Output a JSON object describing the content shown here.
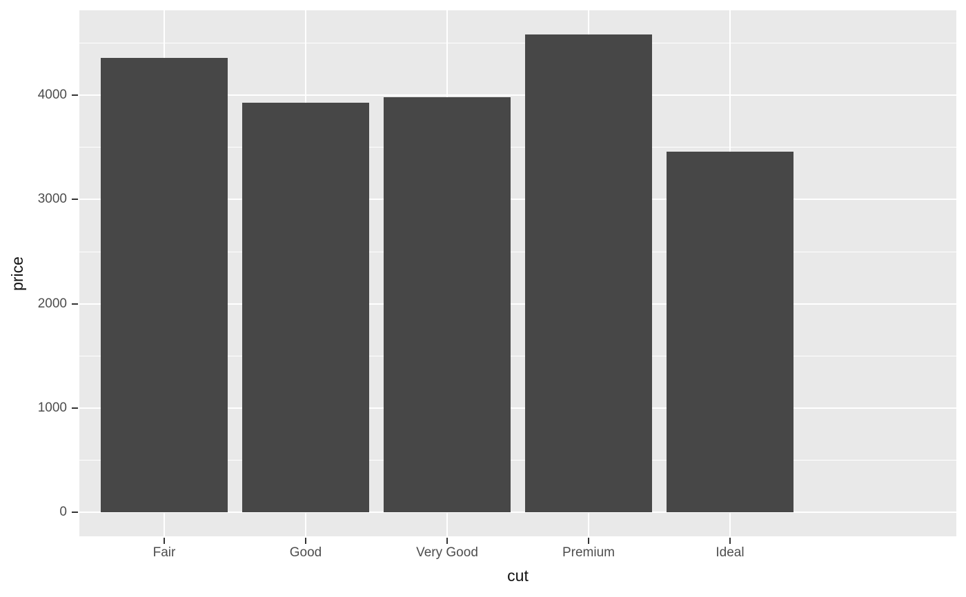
{
  "chart_data": {
    "type": "bar",
    "title": "",
    "xlabel": "cut",
    "ylabel": "price",
    "categories": [
      "Fair",
      "Good",
      "Very Good",
      "Premium",
      "Ideal"
    ],
    "values": [
      4359,
      3929,
      3982,
      4584,
      3458
    ],
    "ylim": [
      -229,
      4814
    ],
    "yticks": [
      0,
      1000,
      2000,
      3000,
      4000
    ],
    "ytick_labels": [
      "0",
      "1000",
      "2000",
      "3000",
      "4000"
    ],
    "yminor": [
      500,
      1500,
      2500,
      3500,
      4500
    ],
    "grid": "on",
    "legend": "none",
    "style": "ggplot2-grey-theme",
    "bar_width_fraction": 0.9,
    "colors": {
      "bar_fill": "#474747",
      "panel_bg": "#E9E9E9",
      "grid_major": "#FFFFFF",
      "grid_minor": "#FFFFFF",
      "tick_label": "#4D4D4D",
      "axis_title": "#111111",
      "tick_mark": "#333333",
      "figure_bg": "#FFFFFF"
    }
  }
}
